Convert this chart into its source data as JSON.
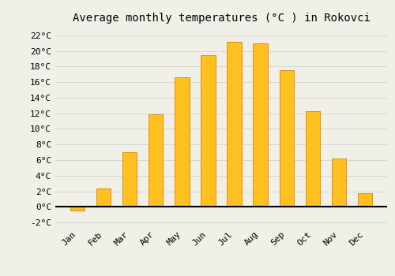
{
  "title": "Average monthly temperatures (°C ) in Rokovci",
  "months": [
    "Jan",
    "Feb",
    "Mar",
    "Apr",
    "May",
    "Jun",
    "Jul",
    "Aug",
    "Sep",
    "Oct",
    "Nov",
    "Dec"
  ],
  "values": [
    -0.5,
    2.4,
    7.0,
    11.9,
    16.6,
    19.5,
    21.2,
    21.0,
    17.5,
    12.3,
    6.2,
    1.7
  ],
  "bar_color": "#FFC020",
  "bar_edge_color": "#E09010",
  "background_color": "#F0F0E8",
  "grid_color": "#D8D8CC",
  "ylim": [
    -2.5,
    23
  ],
  "yticks": [
    -2,
    0,
    2,
    4,
    6,
    8,
    10,
    12,
    14,
    16,
    18,
    20,
    22
  ],
  "ytick_labels": [
    "-2°C",
    "0°C",
    "2°C",
    "4°C",
    "6°C",
    "8°C",
    "10°C",
    "12°C",
    "14°C",
    "16°C",
    "18°C",
    "20°C",
    "22°C"
  ],
  "title_fontsize": 10,
  "tick_fontsize": 8,
  "bar_width": 0.55
}
